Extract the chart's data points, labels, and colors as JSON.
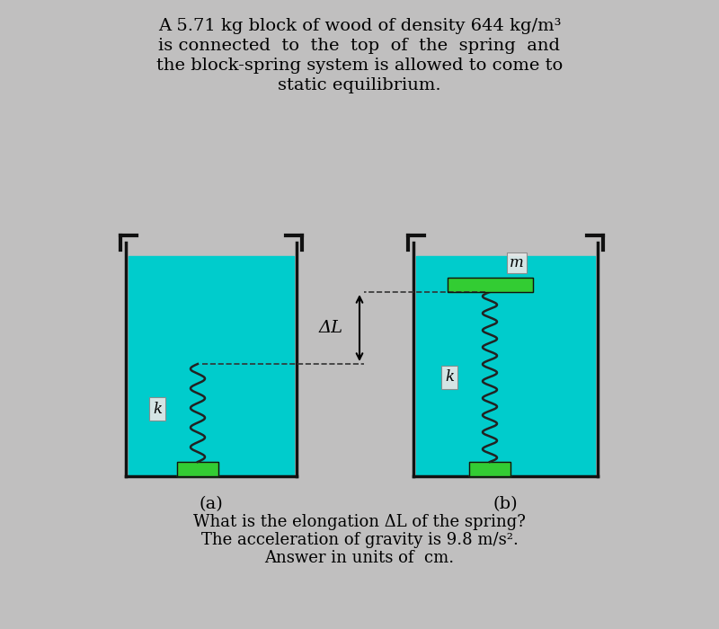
{
  "bg_color": "#c0bfbf",
  "water_color": "#00cccc",
  "beaker_wall_color": "#111111",
  "green_base_color": "#33cc33",
  "spring_color": "#222222",
  "block_color": "#33cc33",
  "title_lines": [
    "A 5.71 kg block of wood of density 644 kg/m³",
    "is connected  to  the  top  of  the  spring  and",
    "the block-spring system is allowed to come to",
    "static equilibrium."
  ],
  "bottom_lines": [
    "What is the elongation ΔL of the spring?",
    "The acceleration of gravity is 9.8 m/s².",
    "Answer in units of  cm."
  ],
  "label_a": "(a)",
  "label_b": "(b)",
  "label_k": "k",
  "label_m": "m",
  "label_deltaL": "ΔL",
  "font_size_title": 14,
  "font_size_bottom": 13
}
